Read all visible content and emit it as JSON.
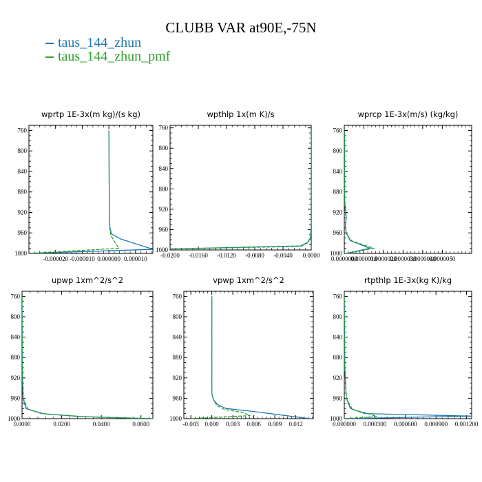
{
  "title": "CLUBB VAR at90E,-75N",
  "colors": {
    "series1": "#1f77b4",
    "series2": "#2ca02c"
  },
  "legend": [
    {
      "label": "taus_144_zhun"
    },
    {
      "label": "taus_144_zhun_pmf"
    }
  ],
  "chart_data": [
    {
      "type": "line",
      "title": "wprtp   1E-3x(m kg)/(s kg)",
      "ylim": [
        1000,
        750
      ],
      "xlim": [
        -3e-05,
        1.65e-05
      ],
      "xticks": [
        "-0.000020",
        "-0.000010",
        "0.000000",
        "0.000010"
      ],
      "xtick_values": [
        -2e-05,
        -1e-05,
        0.0,
        1e-05
      ],
      "yticks": [
        "760",
        "800",
        "840",
        "880",
        "920",
        "960",
        "1000"
      ],
      "ytick_values": [
        760,
        800,
        840,
        880,
        920,
        960,
        1000
      ],
      "series": [
        {
          "name": "taus_144_zhun",
          "x": [
            0.0,
            1e-07,
            2e-07,
            4e-07,
            1e-06,
            4.5e-06,
            1.65e-05,
            -3e-05
          ],
          "y": [
            760,
            850,
            930,
            950,
            962,
            972,
            992,
            1000
          ]
        },
        {
          "name": "taus_144_zhun_pmf",
          "x": [
            0.0,
            1e-07,
            2e-07,
            3e-07,
            7e-07,
            2.5e-06,
            3.8e-06,
            -3e-05
          ],
          "y": [
            760,
            850,
            930,
            950,
            965,
            980,
            990,
            1000
          ]
        }
      ]
    },
    {
      "type": "line",
      "title": "wpthlp   1x(m K)/s",
      "ylim": [
        1000,
        755
      ],
      "xlim": [
        -0.02,
        0.0
      ],
      "xticks": [
        "-0.0200",
        "-0.0160",
        "-0.0120",
        "-0.0080",
        "-0.0040",
        "0.0000"
      ],
      "xtick_values": [
        -0.02,
        -0.016,
        -0.012,
        -0.008,
        -0.004,
        0.0
      ],
      "yticks": [
        "760",
        "800",
        "840",
        "880",
        "920",
        "960",
        "1000"
      ],
      "ytick_values": [
        760,
        800,
        840,
        880,
        920,
        960,
        1000
      ],
      "series": [
        {
          "name": "taus_144_zhun",
          "x": [
            0.0,
            0.0,
            -0.0001,
            -0.0005,
            -0.0015,
            -0.02
          ],
          "y": [
            760,
            950,
            975,
            985,
            992,
            998
          ]
        },
        {
          "name": "taus_144_zhun_pmf",
          "x": [
            0.0,
            0.0,
            -0.0001,
            -0.0005,
            -0.0015,
            -0.02
          ],
          "y": [
            760,
            950,
            976,
            986,
            993,
            998
          ]
        }
      ]
    },
    {
      "type": "line",
      "title": "wprcp   1E-3x(m/s) (kg/kg)",
      "ylim": [
        1000,
        750
      ],
      "xlim": [
        0.0,
        6.5e-06
      ],
      "xticks": [
        "0.0000000",
        "0.0000010",
        "0.0000020",
        "0.0000030",
        "0.0000040",
        "0.0000050"
      ],
      "xtick_values": [
        0.0,
        1e-06,
        2e-06,
        3e-06,
        4e-06,
        5e-06
      ],
      "yticks": [
        "760",
        "800",
        "840",
        "880",
        "920",
        "960",
        "1000"
      ],
      "ytick_values": [
        760,
        800,
        840,
        880,
        920,
        960,
        1000
      ],
      "series": [
        {
          "name": "taus_144_zhun",
          "x": [
            1e-08,
            2e-08,
            8e-08,
            1e-07,
            6e-08,
            1e-07,
            3e-07,
            1.3e-06,
            1e-07
          ],
          "y": [
            760,
            900,
            918,
            930,
            950,
            960,
            975,
            990,
            1000
          ]
        },
        {
          "name": "taus_144_zhun_pmf",
          "x": [
            1e-08,
            2e-08,
            5e-08,
            8e-08,
            5e-08,
            1e-07,
            4e-07,
            1.5e-06,
            1e-07
          ],
          "y": [
            760,
            900,
            918,
            930,
            950,
            962,
            976,
            990,
            1000
          ]
        }
      ]
    },
    {
      "type": "line",
      "title": "upwp   1xm^2/s^2",
      "ylim": [
        1000,
        750
      ],
      "xlim": [
        0.0,
        0.066
      ],
      "xticks": [
        "0.0000",
        "0.0200",
        "0.0400",
        "0.0600"
      ],
      "xtick_values": [
        0.0,
        0.02,
        0.04,
        0.06
      ],
      "yticks": [
        "760",
        "800",
        "840",
        "880",
        "920",
        "960",
        "1000"
      ],
      "ytick_values": [
        760,
        800,
        840,
        880,
        920,
        960,
        1000
      ],
      "series": [
        {
          "name": "taus_144_zhun",
          "x": [
            0.0,
            0.0001,
            0.0005,
            0.002,
            0.01,
            0.03,
            0.066
          ],
          "y": [
            760,
            900,
            960,
            980,
            990,
            996,
            1000
          ]
        },
        {
          "name": "taus_144_zhun_pmf",
          "x": [
            0.0,
            0.0001,
            0.0006,
            0.003,
            0.012,
            0.035,
            0.066
          ],
          "y": [
            760,
            900,
            960,
            982,
            991,
            997,
            1000
          ]
        }
      ]
    },
    {
      "type": "line",
      "title": "vpwp   1xm^2/s^2",
      "ylim": [
        1000,
        750
      ],
      "xlim": [
        -0.004,
        0.0145
      ],
      "xticks": [
        "-0.003",
        "0.000",
        "0.003",
        "0.006",
        "0.009",
        "0.012"
      ],
      "xtick_values": [
        -0.003,
        0.0,
        0.003,
        0.006,
        0.009,
        0.012
      ],
      "yticks": [
        "760",
        "800",
        "840",
        "880",
        "920",
        "960",
        "1000"
      ],
      "ytick_values": [
        760,
        800,
        840,
        880,
        920,
        960,
        1000
      ],
      "series": [
        {
          "name": "taus_144_zhun",
          "x": [
            0.0,
            0.0,
            0.0002,
            0.0008,
            0.002,
            0.006,
            0.014
          ],
          "y": [
            760,
            950,
            962,
            972,
            980,
            986,
            1000
          ]
        },
        {
          "name": "taus_144_zhun_pmf",
          "x": [
            0.0,
            0.0,
            0.0002,
            0.0007,
            0.0018,
            0.0045,
            0.0055,
            -0.003
          ],
          "y": [
            760,
            950,
            962,
            974,
            982,
            988,
            994,
            1000
          ]
        }
      ]
    },
    {
      "type": "line",
      "title": "rtpthlp   1E-3x(kg K)/kg",
      "ylim": [
        1000,
        750
      ],
      "xlim": [
        0.0,
        0.00125
      ],
      "xticks": [
        "0.000000",
        "0.000300",
        "0.000600",
        "0.000900",
        "0.001200"
      ],
      "xtick_values": [
        0.0,
        0.0003,
        0.0006,
        0.0009,
        0.0012
      ],
      "yticks": [
        "760",
        "800",
        "840",
        "880",
        "920",
        "960",
        "1000"
      ],
      "ytick_values": [
        760,
        800,
        840,
        880,
        920,
        960,
        1000
      ],
      "series": [
        {
          "name": "taus_144_zhun",
          "x": [
            0.0,
            5e-06,
            2e-05,
            6e-05,
            0.0002,
            0.00125,
            0.0
          ],
          "y": [
            760,
            900,
            960,
            980,
            990,
            995,
            1000
          ]
        },
        {
          "name": "taus_144_zhun_pmf",
          "x": [
            0.0,
            5e-06,
            2e-05,
            8e-05,
            0.00025,
            0.00032,
            0.0
          ],
          "y": [
            760,
            900,
            960,
            982,
            991,
            996,
            1000
          ]
        }
      ]
    }
  ]
}
